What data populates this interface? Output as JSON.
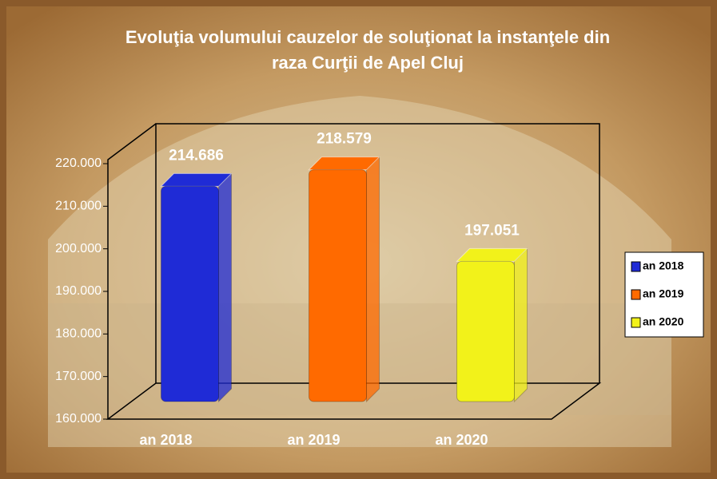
{
  "chart_data": {
    "type": "bar3d",
    "title": "Evoluţia volumului cauzelor de soluţionat la instanţele din raza Curţii de Apel Cluj",
    "categories": [
      "an 2018",
      "an 2019",
      "an 2020"
    ],
    "values": [
      214686,
      218579,
      197051
    ],
    "value_labels": [
      "214.686",
      "218.579",
      "197.051"
    ],
    "colors": [
      "#1f2bd6",
      "#ff6a00",
      "#f2f21a"
    ],
    "ylim": [
      160000,
      220000
    ],
    "yticks": [
      {
        "value": 160000,
        "label": "160.000"
      },
      {
        "value": 170000,
        "label": "170.000"
      },
      {
        "value": 180000,
        "label": "180.000"
      },
      {
        "value": 190000,
        "label": "190.000"
      },
      {
        "value": 200000,
        "label": "200.000"
      },
      {
        "value": 210000,
        "label": "210.000"
      },
      {
        "value": 220000,
        "label": "220.000"
      }
    ],
    "legend": "right"
  }
}
